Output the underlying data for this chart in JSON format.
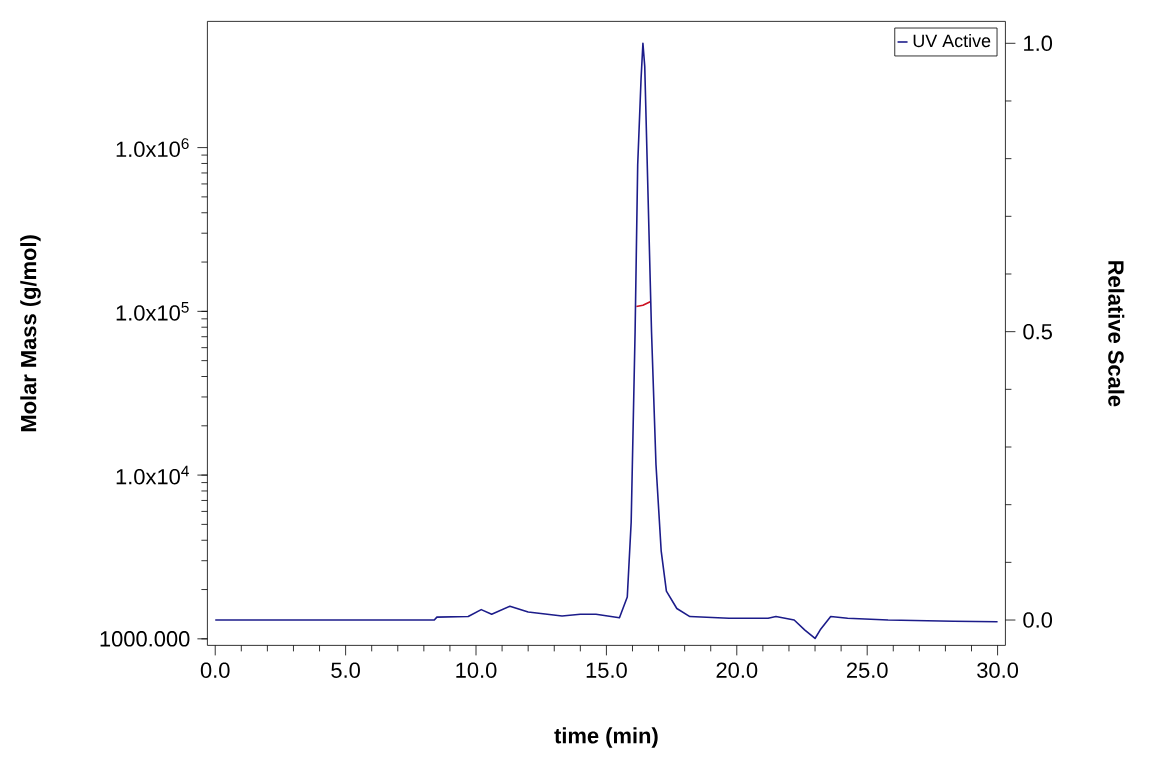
{
  "chart_data": {
    "type": "line",
    "xlabel": "time (min)",
    "ylabel": "Molar Mass (g/mol)",
    "y2label": "Relative Scale",
    "xlim": [
      -0.3,
      30.3
    ],
    "xticks": [
      {
        "value": 0,
        "label": "0.0"
      },
      {
        "value": 5,
        "label": "5.0"
      },
      {
        "value": 10,
        "label": "10.0"
      },
      {
        "value": 15,
        "label": "15.0"
      },
      {
        "value": 20,
        "label": "20.0"
      },
      {
        "value": 25,
        "label": "25.0"
      },
      {
        "value": 30,
        "label": "30.0"
      }
    ],
    "ylim": [
      912,
      5900000
    ],
    "yticks": [
      {
        "value": 1000,
        "label": "1000.000"
      },
      {
        "value": 10000,
        "label": "1.0x10$^{4}$"
      },
      {
        "value": 100000,
        "label": "1.0x10$^{5}$"
      },
      {
        "value": 1000000,
        "label": "1.0x10$^{6}$"
      }
    ],
    "y2lim": [
      -0.044,
      1.038
    ],
    "y2ticks": [
      {
        "value": 0,
        "label": "0.0"
      },
      {
        "value": 0.5,
        "label": "0.5"
      },
      {
        "value": 1,
        "label": "1.0"
      }
    ],
    "log": "y",
    "legend": "top right",
    "series": [
      {
        "name": "UV Active",
        "color": "#1c1c8a",
        "axis": "y2",
        "x": [
          0,
          8.4,
          8.5,
          9.7,
          10.2,
          10.6,
          11.3,
          12,
          13.3,
          14,
          14.6,
          15.5,
          15.8,
          15.95,
          16.1,
          16.2,
          16.33,
          16.4,
          16.47,
          16.6,
          16.73,
          16.9,
          17.1,
          17.3,
          17.7,
          18.2,
          19.7,
          21.2,
          21.5,
          22.2,
          22.6,
          23.0,
          23.2,
          23.6,
          24.25,
          25.8,
          28.3,
          30
        ],
        "values": [
          0.0,
          0.0,
          0.005,
          0.006,
          0.018,
          0.01,
          0.024,
          0.014,
          0.007,
          0.01,
          0.01,
          0.004,
          0.04,
          0.17,
          0.5,
          0.79,
          0.94,
          1.0,
          0.96,
          0.73,
          0.5,
          0.27,
          0.12,
          0.05,
          0.02,
          0.006,
          0.003,
          0.003,
          0.006,
          0.0,
          -0.017,
          -0.032,
          -0.017,
          0.006,
          0.003,
          0.0,
          -0.002,
          -0.003
        ]
      },
      {
        "color": "#cc1020",
        "x": [
          16.15,
          16.4,
          16.7
        ],
        "values": [
          107000,
          109000,
          115000
        ]
      }
    ]
  }
}
